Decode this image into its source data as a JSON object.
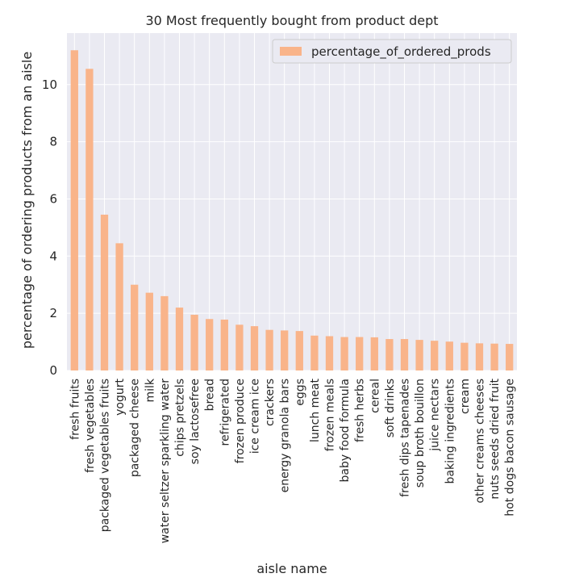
{
  "chart_data": {
    "type": "bar",
    "title": "30 Most frequently bought from product dept",
    "xlabel": "aisle name",
    "ylabel": "percentage of ordering products from an aisle",
    "ylim": [
      0,
      11.8
    ],
    "yticks": [
      0,
      2,
      4,
      6,
      8,
      10
    ],
    "grid": true,
    "legend_position": "top-right",
    "categories": [
      "fresh fruits",
      "fresh vegetables",
      "packaged vegetables fruits",
      "yogurt",
      "packaged cheese",
      "milk",
      "water seltzer sparkling water",
      "chips pretzels",
      "soy lactosefree",
      "bread",
      "refrigerated",
      "frozen produce",
      "ice cream ice",
      "crackers",
      "energy granola bars",
      "eggs",
      "lunch meat",
      "frozen meals",
      "baby food formula",
      "fresh herbs",
      "cereal",
      "soft drinks",
      "fresh dips tapenades",
      "soup broth bouillon",
      "juice nectars",
      "baking ingredients",
      "cream",
      "other creams cheeses",
      "nuts seeds dried fruit",
      "hot dogs bacon sausage"
    ],
    "series": [
      {
        "name": "percentage_of_ordered_prods",
        "color": "#f9b48a",
        "values": [
          11.2,
          10.55,
          5.45,
          4.45,
          3.0,
          2.72,
          2.6,
          2.2,
          1.95,
          1.8,
          1.78,
          1.6,
          1.55,
          1.42,
          1.4,
          1.38,
          1.22,
          1.2,
          1.17,
          1.17,
          1.16,
          1.1,
          1.1,
          1.07,
          1.04,
          1.01,
          0.97,
          0.95,
          0.94,
          0.93
        ]
      }
    ],
    "colors": {
      "plot_background": "#eaeaf2",
      "grid": "#ffffff",
      "text": "#262626"
    }
  }
}
